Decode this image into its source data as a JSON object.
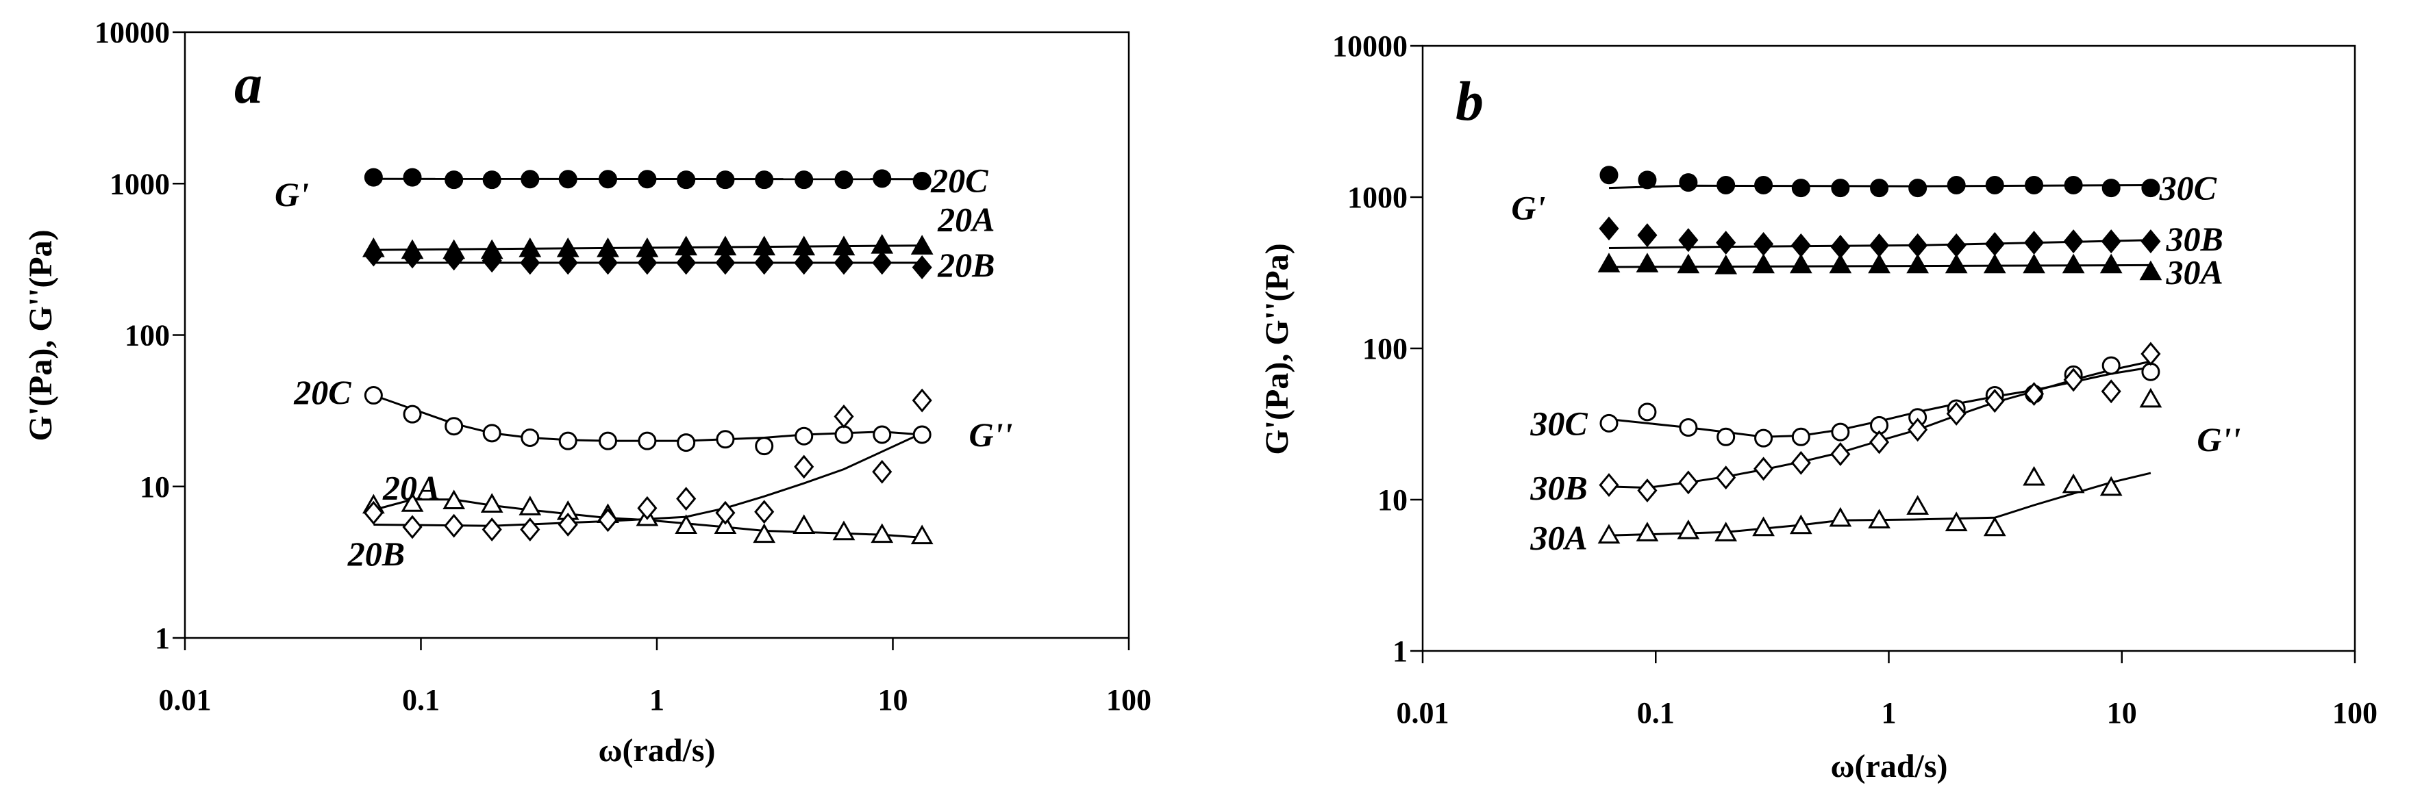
{
  "chart_data": [
    {
      "type": "scatter",
      "panel_label": "a",
      "xlabel": "ω(rad/s)",
      "ylabel": "G'(Pa), G''(Pa)",
      "xscale": "log",
      "yscale": "log",
      "xlim": [
        0.01,
        100
      ],
      "ylim": [
        1,
        10000
      ],
      "x_ticks": [
        "0.01",
        "0.1",
        "1",
        "10",
        "100"
      ],
      "y_ticks": [
        "1",
        "10",
        "100",
        "1000",
        "10000"
      ],
      "grid": false,
      "annotations": [
        {
          "text": "G'",
          "x": 0.024,
          "y": 850
        },
        {
          "text": "G''",
          "x": 21,
          "y": 22
        },
        {
          "text": "20C",
          "x": 14.5,
          "y": 1050
        },
        {
          "text": "20A",
          "x": 15.5,
          "y": 580
        },
        {
          "text": "20B",
          "x": 15.5,
          "y": 290
        },
        {
          "text": "20C",
          "x": 0.029,
          "y": 42
        },
        {
          "text": "20A",
          "x": 0.069,
          "y": 9.8
        },
        {
          "text": "20B",
          "x": 0.049,
          "y": 3.6
        }
      ],
      "series": [
        {
          "name": "20C",
          "modulus": "G'",
          "marker": "circle-filled",
          "x": [
            0.063,
            0.092,
            0.138,
            0.2,
            0.29,
            0.42,
            0.62,
            0.91,
            1.33,
            1.95,
            2.85,
            4.2,
            6.2,
            9.0,
            13.3
          ],
          "y": [
            1100,
            1100,
            1060,
            1060,
            1070,
            1070,
            1070,
            1070,
            1060,
            1060,
            1060,
            1060,
            1060,
            1080,
            1040
          ],
          "fit": [
            [
              0.063,
              1075
            ],
            [
              13.3,
              1070
            ]
          ]
        },
        {
          "name": "20A",
          "modulus": "G'",
          "marker": "triangle-filled",
          "x": [
            0.063,
            0.092,
            0.138,
            0.2,
            0.29,
            0.42,
            0.62,
            0.91,
            1.33,
            1.95,
            2.85,
            4.2,
            6.2,
            9.0,
            13.3
          ],
          "y": [
            370,
            360,
            360,
            360,
            370,
            370,
            370,
            370,
            380,
            380,
            380,
            380,
            380,
            390,
            385
          ],
          "fit": [
            [
              0.063,
              365
            ],
            [
              13.3,
              390
            ]
          ]
        },
        {
          "name": "20B",
          "modulus": "G'",
          "marker": "diamond-filled",
          "x": [
            0.063,
            0.092,
            0.138,
            0.2,
            0.29,
            0.42,
            0.62,
            0.91,
            1.33,
            1.95,
            2.85,
            4.2,
            6.2,
            9.0,
            13.3
          ],
          "y": [
            340,
            330,
            320,
            310,
            300,
            300,
            300,
            300,
            300,
            300,
            300,
            300,
            300,
            300,
            280
          ],
          "fit": [
            [
              0.063,
              300
            ],
            [
              13.3,
              300
            ]
          ]
        },
        {
          "name": "20C",
          "modulus": "G''",
          "marker": "circle-open",
          "x": [
            0.063,
            0.092,
            0.138,
            0.2,
            0.29,
            0.42,
            0.62,
            0.91,
            1.33,
            1.95,
            2.85,
            4.2,
            6.2,
            9.0,
            13.3
          ],
          "y": [
            40,
            30,
            25,
            22.5,
            21,
            20,
            20,
            20,
            19.5,
            20.5,
            18.5,
            21.5,
            22,
            22,
            22
          ],
          "fit": [
            [
              0.063,
              40
            ],
            [
              0.092,
              32.5
            ],
            [
              0.138,
              26
            ],
            [
              0.2,
              22.5
            ],
            [
              0.29,
              21
            ],
            [
              0.42,
              20.3
            ],
            [
              0.62,
              20
            ],
            [
              0.91,
              20
            ],
            [
              1.33,
              20
            ],
            [
              1.95,
              20.5
            ],
            [
              2.85,
              21
            ],
            [
              4.2,
              22
            ],
            [
              6.2,
              22.5
            ],
            [
              9.0,
              23
            ],
            [
              13.3,
              22
            ]
          ]
        },
        {
          "name": "20A",
          "modulus": "G''",
          "marker": "triangle-open",
          "x": [
            0.063,
            0.092,
            0.138,
            0.2,
            0.29,
            0.42,
            0.62,
            0.91,
            1.33,
            1.95,
            2.85,
            4.2,
            6.2,
            9.0,
            13.3
          ],
          "y": [
            7.5,
            7.7,
            8.0,
            7.6,
            7.3,
            6.8,
            6.5,
            6.2,
            5.5,
            5.5,
            4.8,
            5.5,
            5.0,
            4.8,
            4.7
          ],
          "fit": [
            [
              0.063,
              7.0
            ],
            [
              0.092,
              8.2
            ],
            [
              0.138,
              8.2
            ],
            [
              0.2,
              7.5
            ],
            [
              0.29,
              7.0
            ],
            [
              0.42,
              6.6
            ],
            [
              0.62,
              6.2
            ],
            [
              0.91,
              6.0
            ],
            [
              1.33,
              5.7
            ],
            [
              1.95,
              5.4
            ],
            [
              2.85,
              5.1
            ],
            [
              4.2,
              5.0
            ],
            [
              6.2,
              4.9
            ],
            [
              9.0,
              4.8
            ],
            [
              13.3,
              4.6
            ]
          ]
        },
        {
          "name": "20B",
          "modulus": "G''",
          "marker": "diamond-open",
          "x": [
            0.063,
            0.092,
            0.138,
            0.2,
            0.29,
            0.42,
            0.62,
            0.91,
            1.33,
            1.95,
            2.85,
            4.2,
            6.2,
            9.0,
            13.3
          ],
          "y": [
            6.7,
            5.4,
            5.5,
            5.2,
            5.2,
            5.6,
            6.0,
            7.2,
            8.3,
            6.7,
            6.8,
            13.5,
            29,
            12.5,
            37
          ],
          "fit": [
            [
              0.063,
              5.6
            ],
            [
              0.2,
              5.5
            ],
            [
              0.62,
              5.9
            ],
            [
              1.33,
              6.3
            ],
            [
              1.95,
              7.2
            ],
            [
              2.85,
              8.6
            ],
            [
              4.2,
              10.5
            ],
            [
              6.2,
              13
            ],
            [
              9.0,
              17
            ],
            [
              13.3,
              22.5
            ]
          ]
        }
      ]
    },
    {
      "type": "scatter",
      "panel_label": "b",
      "xlabel": "ω(rad/s)",
      "ylabel": "G'(Pa), G''(Pa)",
      "xscale": "log",
      "yscale": "log",
      "xlim": [
        0.01,
        100
      ],
      "ylim": [
        1,
        10000
      ],
      "x_ticks": [
        "0.01",
        "0.1",
        "1",
        "10",
        "100"
      ],
      "y_ticks": [
        "1",
        "10",
        "100",
        "1000",
        "10000"
      ],
      "grid": false,
      "annotations": [
        {
          "text": "G'",
          "x": 0.024,
          "y": 850
        },
        {
          "text": "G''",
          "x": 21,
          "y": 25
        },
        {
          "text": "30C",
          "x": 14.5,
          "y": 1150
        },
        {
          "text": "30B",
          "x": 15.5,
          "y": 530
        },
        {
          "text": "30A",
          "x": 15.5,
          "y": 320
        },
        {
          "text": "30C",
          "x": 0.029,
          "y": 32
        },
        {
          "text": "30B",
          "x": 0.029,
          "y": 12
        },
        {
          "text": "30A",
          "x": 0.029,
          "y": 5.6
        }
      ],
      "series": [
        {
          "name": "30C",
          "modulus": "G'",
          "marker": "circle-filled",
          "x": [
            0.063,
            0.092,
            0.138,
            0.2,
            0.29,
            0.42,
            0.62,
            0.91,
            1.33,
            1.95,
            2.85,
            4.2,
            6.2,
            9.0,
            13.3
          ],
          "y": [
            1400,
            1300,
            1250,
            1200,
            1200,
            1150,
            1150,
            1150,
            1150,
            1200,
            1200,
            1200,
            1200,
            1150,
            1150
          ],
          "fit": [
            [
              0.063,
              1150
            ],
            [
              0.138,
              1190
            ],
            [
              1.33,
              1180
            ],
            [
              13.3,
              1200
            ]
          ]
        },
        {
          "name": "30B",
          "modulus": "G'",
          "marker": "diamond-filled",
          "x": [
            0.063,
            0.092,
            0.138,
            0.2,
            0.29,
            0.42,
            0.62,
            0.91,
            1.33,
            1.95,
            2.85,
            4.2,
            6.2,
            9.0,
            13.3
          ],
          "y": [
            620,
            560,
            520,
            500,
            490,
            480,
            470,
            480,
            480,
            480,
            490,
            500,
            510,
            510,
            510
          ],
          "fit": [
            [
              0.063,
              460
            ],
            [
              0.2,
              470
            ],
            [
              1.33,
              480
            ],
            [
              13.3,
              520
            ]
          ]
        },
        {
          "name": "30A",
          "modulus": "G'",
          "marker": "triangle-filled",
          "x": [
            0.063,
            0.092,
            0.138,
            0.2,
            0.29,
            0.42,
            0.62,
            0.91,
            1.33,
            1.95,
            2.85,
            4.2,
            6.2,
            9.0,
            13.3
          ],
          "y": [
            360,
            360,
            355,
            350,
            355,
            355,
            355,
            355,
            355,
            355,
            355,
            355,
            355,
            355,
            320
          ],
          "fit": [
            [
              0.063,
              345
            ],
            [
              13.3,
              355
            ]
          ]
        },
        {
          "name": "30C",
          "modulus": "G''",
          "marker": "circle-open",
          "x": [
            0.063,
            0.092,
            0.138,
            0.2,
            0.29,
            0.42,
            0.62,
            0.91,
            1.33,
            1.95,
            2.85,
            4.2,
            6.2,
            9.0,
            13.3
          ],
          "y": [
            32,
            38,
            30,
            26,
            25.5,
            26,
            28,
            31,
            35,
            40,
            49,
            50,
            67,
            77,
            70
          ],
          "fit": [
            [
              0.063,
              34
            ],
            [
              0.138,
              30
            ],
            [
              0.2,
              28
            ],
            [
              0.29,
              26
            ],
            [
              0.42,
              26.5
            ],
            [
              0.62,
              29
            ],
            [
              0.91,
              33
            ],
            [
              1.33,
              38
            ],
            [
              1.95,
              43
            ],
            [
              2.85,
              48
            ],
            [
              4.2,
              53
            ],
            [
              6.2,
              60
            ],
            [
              9.0,
              68
            ],
            [
              13.3,
              75
            ]
          ]
        },
        {
          "name": "30B",
          "modulus": "G''",
          "marker": "diamond-open",
          "x": [
            0.063,
            0.092,
            0.138,
            0.2,
            0.29,
            0.42,
            0.62,
            0.91,
            1.33,
            1.95,
            2.85,
            4.2,
            6.2,
            9.0,
            13.3
          ],
          "y": [
            12.5,
            11.5,
            13,
            14,
            16,
            17.5,
            20,
            24,
            29,
            37,
            45,
            50,
            62,
            52,
            92
          ],
          "fit": [
            [
              0.063,
              12.2
            ],
            [
              0.092,
              12
            ],
            [
              0.138,
              13
            ],
            [
              0.2,
              14.2
            ],
            [
              0.29,
              15.8
            ],
            [
              0.42,
              17.8
            ],
            [
              0.62,
              20.5
            ],
            [
              0.91,
              24.5
            ],
            [
              1.33,
              29
            ],
            [
              1.95,
              36
            ],
            [
              2.85,
              44
            ],
            [
              4.2,
              52
            ],
            [
              6.2,
              62
            ],
            [
              9.0,
              72
            ],
            [
              13.3,
              82
            ]
          ]
        },
        {
          "name": "30A",
          "modulus": "G''",
          "marker": "triangle-open",
          "x": [
            0.063,
            0.092,
            0.138,
            0.2,
            0.29,
            0.42,
            0.62,
            0.91,
            1.33,
            1.95,
            2.85,
            4.2,
            6.2,
            9.0,
            13.3
          ],
          "y": [
            5.8,
            6.0,
            6.2,
            6.0,
            6.5,
            6.7,
            7.5,
            7.3,
            9.0,
            7.0,
            6.5,
            14,
            12.5,
            12,
            46
          ],
          "fit": [
            [
              0.063,
              5.8
            ],
            [
              0.2,
              6.1
            ],
            [
              0.42,
              6.8
            ],
            [
              0.62,
              7.3
            ],
            [
              1.33,
              7.4
            ],
            [
              2.85,
              7.6
            ],
            [
              4.2,
              9.2
            ],
            [
              6.2,
              11
            ],
            [
              9.0,
              13
            ],
            [
              13.3,
              15
            ]
          ]
        }
      ]
    }
  ]
}
